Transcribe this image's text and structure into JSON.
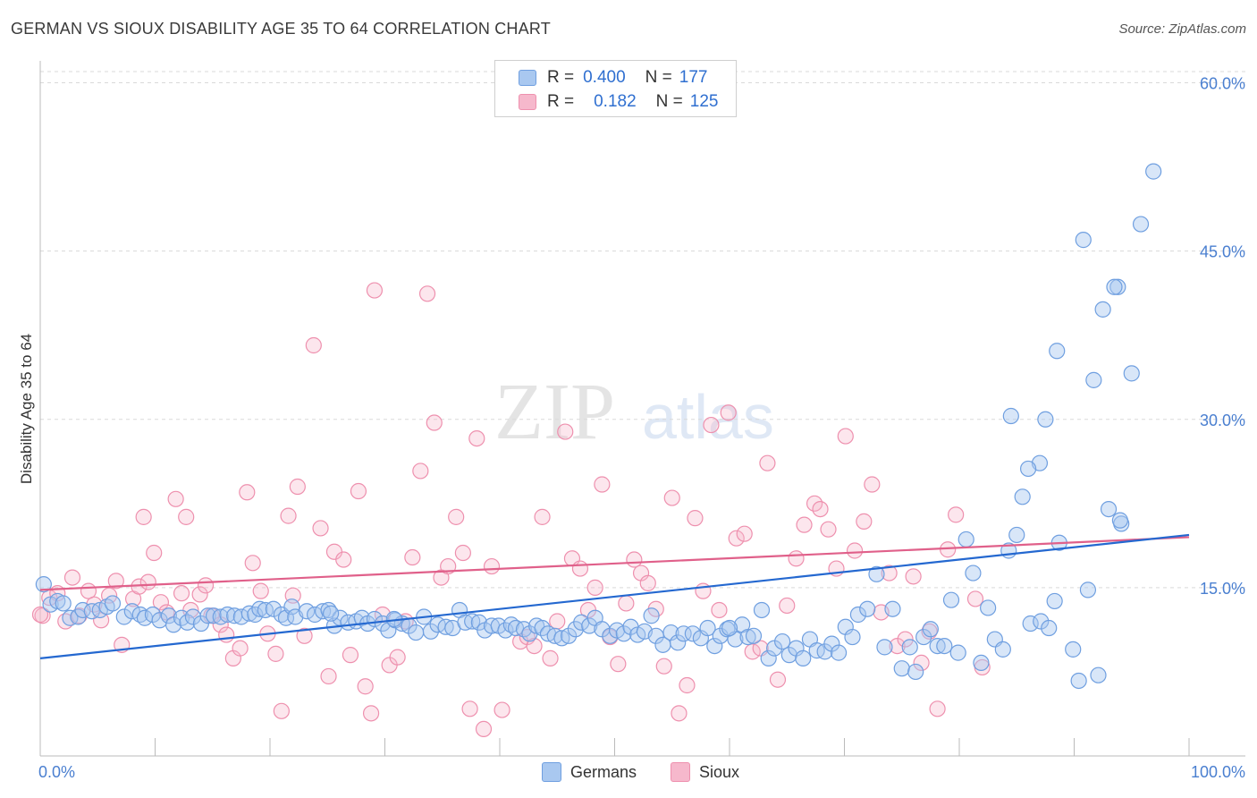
{
  "title": "GERMAN VS SIOUX DISABILITY AGE 35 TO 64 CORRELATION CHART",
  "source": "Source: ZipAtlas.com",
  "watermark": {
    "zip": "ZIP",
    "atlas": "atlas"
  },
  "legend": {
    "rows": [
      {
        "r_label": "R =",
        "r_value": "0.400",
        "n_label": "N =",
        "n_value": "177"
      },
      {
        "r_label": "R =",
        "r_value": "0.182",
        "n_label": "N =",
        "n_value": "125"
      }
    ]
  },
  "bottom_legend": [
    "Germans",
    "Sioux"
  ],
  "colors": {
    "german_fill": "#a9c8f0",
    "german_stroke": "#6f9fe0",
    "german_line": "#2468d0",
    "sioux_fill": "#f6b8cc",
    "sioux_stroke": "#ee90ae",
    "sioux_line": "#e0608a",
    "tick_text": "#4a7fd0",
    "grid": "#d9d9d9"
  },
  "chart_data": {
    "type": "scatter",
    "title": "GERMAN VS SIOUX DISABILITY AGE 35 TO 64 CORRELATION CHART",
    "xlabel": "",
    "ylabel": "Disability Age 35 to 64",
    "xlim": [
      0,
      100
    ],
    "ylim": [
      0,
      61
    ],
    "x_tick_labels": [
      "0.0%",
      "100.0%"
    ],
    "y_ticks": [
      15,
      30,
      45,
      60
    ],
    "y_tick_labels": [
      "15.0%",
      "30.0%",
      "45.0%",
      "60.0%"
    ],
    "grid": true,
    "legend_position": "top-center",
    "series": [
      {
        "name": "Germans",
        "r": 0.4,
        "n": 177,
        "trend": {
          "x": [
            0,
            100
          ],
          "y": [
            8.7,
            19.7
          ]
        },
        "points": [
          [
            0.3,
            15.3
          ],
          [
            0.9,
            13.5
          ],
          [
            1.5,
            13.8
          ],
          [
            2.0,
            13.6
          ],
          [
            2.6,
            12.3
          ],
          [
            3.3,
            12.4
          ],
          [
            3.7,
            13.0
          ],
          [
            4.5,
            12.9
          ],
          [
            5.2,
            13.0
          ],
          [
            5.8,
            13.3
          ],
          [
            6.3,
            13.6
          ],
          [
            7.3,
            12.4
          ],
          [
            8.0,
            12.9
          ],
          [
            8.7,
            12.6
          ],
          [
            9.1,
            12.3
          ],
          [
            9.8,
            12.6
          ],
          [
            10.4,
            12.1
          ],
          [
            11.2,
            12.5
          ],
          [
            11.6,
            11.7
          ],
          [
            12.3,
            12.3
          ],
          [
            12.8,
            11.9
          ],
          [
            13.3,
            12.4
          ],
          [
            14.0,
            11.8
          ],
          [
            14.6,
            12.5
          ],
          [
            15.1,
            12.5
          ],
          [
            15.7,
            12.4
          ],
          [
            16.3,
            12.6
          ],
          [
            16.9,
            12.5
          ],
          [
            17.5,
            12.4
          ],
          [
            18.2,
            12.7
          ],
          [
            18.7,
            12.6
          ],
          [
            19.1,
            13.1
          ],
          [
            19.6,
            13.0
          ],
          [
            20.3,
            13.1
          ],
          [
            21.0,
            12.6
          ],
          [
            21.4,
            12.3
          ],
          [
            21.9,
            13.3
          ],
          [
            22.2,
            12.4
          ],
          [
            23.2,
            12.9
          ],
          [
            23.9,
            12.6
          ],
          [
            24.6,
            12.9
          ],
          [
            25.1,
            13.0
          ],
          [
            25.6,
            11.6
          ],
          [
            26.1,
            12.3
          ],
          [
            26.8,
            11.9
          ],
          [
            27.5,
            12.0
          ],
          [
            28.0,
            12.3
          ],
          [
            28.5,
            11.8
          ],
          [
            29.1,
            12.2
          ],
          [
            29.8,
            11.8
          ],
          [
            30.3,
            11.2
          ],
          [
            30.9,
            12.1
          ],
          [
            31.5,
            11.8
          ],
          [
            32.1,
            11.6
          ],
          [
            32.7,
            11.0
          ],
          [
            33.4,
            12.4
          ],
          [
            34.0,
            11.1
          ],
          [
            34.6,
            11.7
          ],
          [
            35.3,
            11.5
          ],
          [
            35.9,
            11.4
          ],
          [
            36.5,
            13.0
          ],
          [
            37.0,
            11.9
          ],
          [
            37.6,
            12.0
          ],
          [
            38.2,
            11.9
          ],
          [
            38.7,
            11.2
          ],
          [
            39.3,
            11.6
          ],
          [
            39.9,
            11.6
          ],
          [
            40.5,
            11.2
          ],
          [
            41.0,
            11.7
          ],
          [
            41.4,
            11.4
          ],
          [
            42.1,
            11.3
          ],
          [
            42.6,
            10.9
          ],
          [
            43.2,
            11.6
          ],
          [
            43.7,
            11.4
          ],
          [
            44.2,
            10.9
          ],
          [
            44.8,
            10.7
          ],
          [
            45.4,
            10.5
          ],
          [
            46.0,
            10.7
          ],
          [
            46.6,
            11.3
          ],
          [
            47.1,
            11.9
          ],
          [
            47.8,
            11.6
          ],
          [
            48.3,
            12.3
          ],
          [
            48.9,
            11.3
          ],
          [
            49.6,
            10.7
          ],
          [
            50.2,
            11.2
          ],
          [
            50.8,
            10.9
          ],
          [
            51.4,
            11.5
          ],
          [
            52.0,
            10.8
          ],
          [
            52.6,
            11.1
          ],
          [
            53.2,
            12.5
          ],
          [
            53.6,
            10.7
          ],
          [
            54.2,
            9.9
          ],
          [
            54.9,
            11.0
          ],
          [
            55.5,
            10.1
          ],
          [
            56.0,
            10.9
          ],
          [
            56.8,
            10.9
          ],
          [
            57.5,
            10.5
          ],
          [
            58.1,
            11.4
          ],
          [
            58.7,
            9.8
          ],
          [
            59.2,
            10.7
          ],
          [
            59.8,
            11.3
          ],
          [
            60.5,
            10.4
          ],
          [
            61.1,
            11.7
          ],
          [
            61.6,
            10.6
          ],
          [
            62.1,
            10.7
          ],
          [
            62.8,
            13.0
          ],
          [
            63.4,
            8.7
          ],
          [
            63.9,
            9.6
          ],
          [
            64.6,
            10.2
          ],
          [
            65.2,
            9.0
          ],
          [
            65.8,
            9.6
          ],
          [
            66.4,
            8.7
          ],
          [
            67.0,
            10.4
          ],
          [
            67.6,
            9.4
          ],
          [
            68.3,
            9.3
          ],
          [
            68.9,
            10.0
          ],
          [
            69.5,
            9.2
          ],
          [
            70.1,
            11.5
          ],
          [
            70.7,
            10.6
          ],
          [
            71.2,
            12.6
          ],
          [
            72.0,
            13.1
          ],
          [
            72.8,
            16.2
          ],
          [
            73.5,
            9.7
          ],
          [
            74.2,
            13.1
          ],
          [
            75.0,
            7.8
          ],
          [
            75.7,
            9.7
          ],
          [
            76.2,
            7.5
          ],
          [
            76.9,
            10.6
          ],
          [
            77.5,
            11.3
          ],
          [
            78.1,
            9.8
          ],
          [
            78.7,
            9.8
          ],
          [
            79.3,
            13.9
          ],
          [
            79.9,
            9.2
          ],
          [
            80.6,
            19.3
          ],
          [
            81.2,
            16.3
          ],
          [
            81.9,
            8.3
          ],
          [
            82.5,
            13.2
          ],
          [
            83.1,
            10.4
          ],
          [
            83.8,
            9.5
          ],
          [
            84.3,
            18.3
          ],
          [
            85.0,
            19.7
          ],
          [
            86.2,
            11.8
          ],
          [
            87.1,
            12.0
          ],
          [
            87.8,
            11.4
          ],
          [
            88.3,
            13.8
          ],
          [
            88.7,
            19.0
          ],
          [
            89.9,
            9.5
          ],
          [
            90.4,
            6.7
          ],
          [
            91.2,
            14.8
          ],
          [
            92.1,
            7.2
          ],
          [
            93.0,
            22.0
          ],
          [
            94.1,
            20.7
          ],
          [
            95.0,
            34.1
          ],
          [
            95.8,
            47.4
          ],
          [
            96.9,
            52.1
          ],
          [
            93.8,
            41.8
          ],
          [
            92.5,
            39.8
          ],
          [
            91.7,
            33.5
          ],
          [
            90.8,
            46.0
          ],
          [
            88.5,
            36.1
          ],
          [
            87.5,
            30.0
          ],
          [
            87.0,
            26.1
          ],
          [
            86.0,
            25.6
          ],
          [
            85.5,
            23.1
          ],
          [
            84.5,
            30.3
          ],
          [
            93.5,
            41.8
          ],
          [
            94.0,
            21.0
          ],
          [
            30.8,
            12.2
          ],
          [
            25.3,
            12.7
          ],
          [
            60.0,
            11.4
          ]
        ]
      },
      {
        "name": "Sioux",
        "r": 0.182,
        "n": 125,
        "trend": {
          "x": [
            0,
            100
          ],
          "y": [
            14.8,
            19.5
          ]
        },
        "points": [
          [
            0.2,
            12.5
          ],
          [
            0.8,
            14.1
          ],
          [
            1.5,
            14.5
          ],
          [
            2.2,
            12.0
          ],
          [
            2.8,
            15.9
          ],
          [
            3.4,
            12.5
          ],
          [
            4.2,
            14.7
          ],
          [
            4.7,
            13.5
          ],
          [
            5.3,
            12.1
          ],
          [
            6.0,
            14.3
          ],
          [
            6.6,
            15.6
          ],
          [
            7.1,
            9.9
          ],
          [
            8.1,
            14.0
          ],
          [
            8.6,
            15.1
          ],
          [
            9.0,
            21.3
          ],
          [
            9.4,
            15.5
          ],
          [
            9.9,
            18.1
          ],
          [
            10.5,
            13.7
          ],
          [
            11.0,
            12.8
          ],
          [
            11.8,
            22.9
          ],
          [
            12.3,
            14.5
          ],
          [
            12.7,
            21.3
          ],
          [
            13.1,
            13.0
          ],
          [
            13.9,
            14.4
          ],
          [
            14.4,
            15.2
          ],
          [
            14.9,
            12.5
          ],
          [
            15.7,
            11.7
          ],
          [
            16.2,
            10.8
          ],
          [
            16.8,
            8.7
          ],
          [
            17.4,
            9.6
          ],
          [
            18.0,
            23.5
          ],
          [
            18.5,
            17.2
          ],
          [
            19.2,
            14.7
          ],
          [
            19.8,
            10.9
          ],
          [
            20.5,
            9.1
          ],
          [
            21.0,
            4.0
          ],
          [
            21.6,
            21.4
          ],
          [
            22.0,
            14.3
          ],
          [
            22.4,
            24.0
          ],
          [
            23.0,
            10.7
          ],
          [
            23.8,
            36.6
          ],
          [
            24.4,
            20.3
          ],
          [
            25.1,
            7.1
          ],
          [
            25.6,
            18.2
          ],
          [
            26.4,
            17.5
          ],
          [
            27.0,
            9.0
          ],
          [
            27.7,
            23.6
          ],
          [
            28.3,
            6.2
          ],
          [
            29.1,
            41.5
          ],
          [
            29.8,
            12.6
          ],
          [
            30.4,
            8.1
          ],
          [
            31.1,
            8.8
          ],
          [
            31.8,
            12.0
          ],
          [
            32.4,
            17.7
          ],
          [
            33.1,
            25.4
          ],
          [
            33.7,
            41.2
          ],
          [
            34.3,
            29.7
          ],
          [
            34.9,
            15.9
          ],
          [
            35.5,
            16.9
          ],
          [
            36.2,
            21.3
          ],
          [
            36.8,
            18.1
          ],
          [
            37.4,
            4.2
          ],
          [
            38.0,
            28.3
          ],
          [
            38.6,
            2.4
          ],
          [
            39.3,
            16.9
          ],
          [
            41.8,
            10.2
          ],
          [
            42.4,
            10.6
          ],
          [
            43.0,
            9.8
          ],
          [
            43.7,
            21.3
          ],
          [
            44.4,
            8.7
          ],
          [
            45.0,
            12.0
          ],
          [
            45.7,
            28.9
          ],
          [
            46.3,
            17.6
          ],
          [
            47.0,
            16.7
          ],
          [
            47.7,
            13.0
          ],
          [
            48.3,
            15.0
          ],
          [
            48.9,
            24.2
          ],
          [
            49.6,
            10.6
          ],
          [
            50.3,
            8.2
          ],
          [
            51.0,
            13.6
          ],
          [
            51.7,
            17.5
          ],
          [
            52.3,
            16.3
          ],
          [
            52.9,
            15.4
          ],
          [
            53.6,
            13.1
          ],
          [
            54.3,
            8.0
          ],
          [
            55.0,
            23.0
          ],
          [
            55.6,
            3.8
          ],
          [
            56.3,
            6.3
          ],
          [
            57.0,
            21.2
          ],
          [
            57.7,
            14.7
          ],
          [
            58.4,
            29.5
          ],
          [
            59.1,
            13.0
          ],
          [
            59.9,
            30.6
          ],
          [
            60.6,
            19.4
          ],
          [
            61.3,
            19.8
          ],
          [
            62.0,
            9.3
          ],
          [
            62.7,
            9.6
          ],
          [
            63.3,
            26.1
          ],
          [
            64.2,
            6.8
          ],
          [
            65.0,
            13.4
          ],
          [
            65.8,
            17.6
          ],
          [
            66.5,
            20.6
          ],
          [
            67.4,
            22.5
          ],
          [
            67.9,
            22.0
          ],
          [
            68.6,
            20.2
          ],
          [
            69.3,
            16.7
          ],
          [
            70.1,
            28.5
          ],
          [
            70.9,
            18.3
          ],
          [
            71.7,
            20.9
          ],
          [
            72.4,
            24.2
          ],
          [
            73.2,
            12.8
          ],
          [
            73.9,
            16.3
          ],
          [
            74.6,
            9.8
          ],
          [
            75.3,
            10.4
          ],
          [
            76.0,
            16.0
          ],
          [
            76.7,
            8.3
          ],
          [
            77.4,
            11.1
          ],
          [
            78.1,
            4.2
          ],
          [
            79.0,
            18.4
          ],
          [
            79.7,
            21.5
          ],
          [
            0.0,
            12.6
          ],
          [
            40.2,
            4.1
          ],
          [
            28.8,
            3.8
          ],
          [
            82.0,
            7.9
          ],
          [
            81.4,
            14.0
          ]
        ]
      }
    ]
  }
}
